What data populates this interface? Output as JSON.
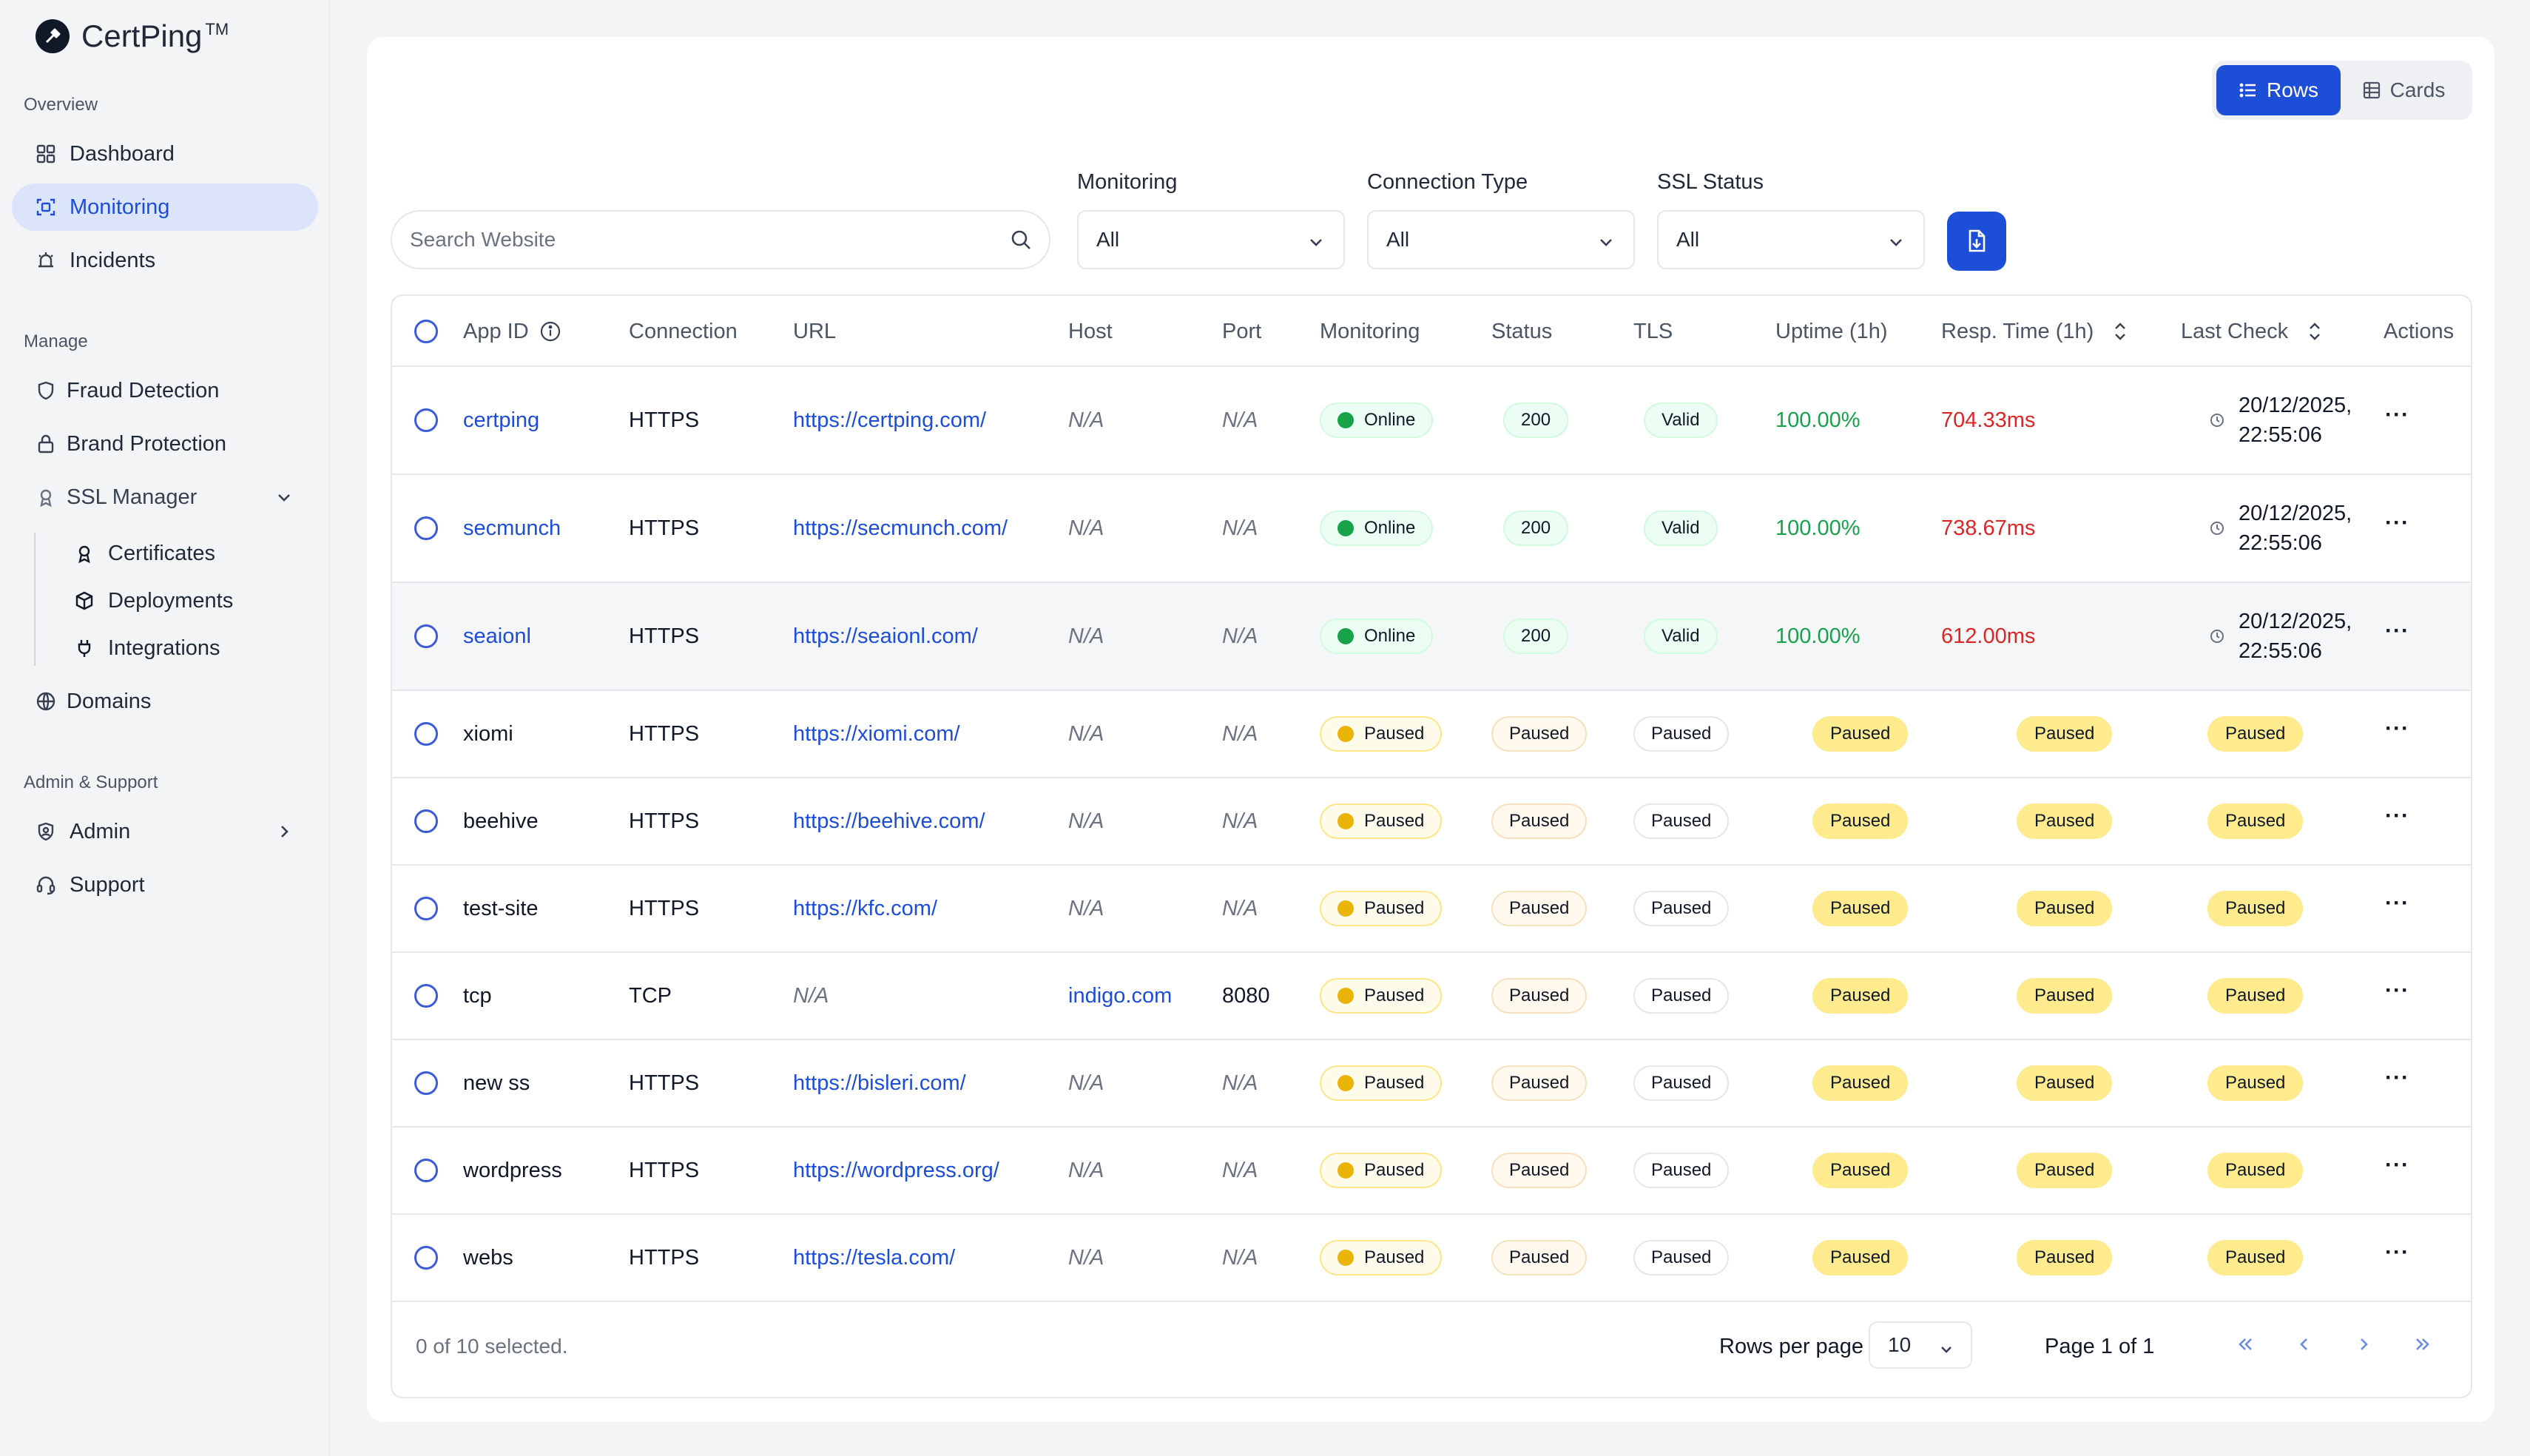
{
  "app": {
    "name": "CertPing",
    "tm": "TM"
  },
  "sidebar": {
    "sections": [
      {
        "label": "Overview"
      },
      {
        "label": "Manage"
      },
      {
        "label": "Admin & Support"
      }
    ],
    "items": {
      "dashboard": "Dashboard",
      "monitoring": "Monitoring",
      "incidents": "Incidents",
      "fraud": "Fraud Detection",
      "brand": "Brand Protection",
      "ssl": "SSL Manager",
      "certificates": "Certificates",
      "deployments": "Deployments",
      "integrations": "Integrations",
      "domains": "Domains",
      "admin": "Admin",
      "support": "Support"
    }
  },
  "toolbar": {
    "view_rows": "Rows",
    "view_cards": "Cards",
    "search_placeholder": "Search Website",
    "filters": [
      {
        "label": "Monitoring",
        "value": "All"
      },
      {
        "label": "Connection Type",
        "value": "All"
      },
      {
        "label": "SSL Status",
        "value": "All"
      }
    ]
  },
  "table": {
    "headers": {
      "app_id": "App ID",
      "connection": "Connection",
      "url": "URL",
      "host": "Host",
      "port": "Port",
      "monitoring": "Monitoring",
      "status": "Status",
      "tls": "TLS",
      "uptime": "Uptime (1h)",
      "resp": "Resp. Time (1h)",
      "last_check": "Last Check",
      "actions": "Actions"
    },
    "rows": [
      {
        "app_id": "certping",
        "connection": "HTTPS",
        "url": "https://certping.com/",
        "host": "N/A",
        "port": "N/A",
        "monitoring": "Online",
        "status": "200",
        "tls": "Valid",
        "uptime": "100.00%",
        "resp": "704.33ms",
        "last_check_date": "20/12/2025,",
        "last_check_time": "22:55:06"
      },
      {
        "app_id": "secmunch",
        "connection": "HTTPS",
        "url": "https://secmunch.com/",
        "host": "N/A",
        "port": "N/A",
        "monitoring": "Online",
        "status": "200",
        "tls": "Valid",
        "uptime": "100.00%",
        "resp": "738.67ms",
        "last_check_date": "20/12/2025,",
        "last_check_time": "22:55:06"
      },
      {
        "app_id": "seaionl",
        "connection": "HTTPS",
        "url": "https://seaionl.com/",
        "host": "N/A",
        "port": "N/A",
        "monitoring": "Online",
        "status": "200",
        "tls": "Valid",
        "uptime": "100.00%",
        "resp": "612.00ms",
        "last_check_date": "20/12/2025,",
        "last_check_time": "22:55:06"
      },
      {
        "app_id": "xiomi",
        "connection": "HTTPS",
        "url": "https://xiomi.com/",
        "host": "N/A",
        "port": "N/A",
        "monitoring": "Paused",
        "status": "Paused",
        "tls": "Paused",
        "uptime": "Paused",
        "resp": "Paused",
        "last_check": "Paused"
      },
      {
        "app_id": "beehive",
        "connection": "HTTPS",
        "url": "https://beehive.com/",
        "host": "N/A",
        "port": "N/A",
        "monitoring": "Paused",
        "status": "Paused",
        "tls": "Paused",
        "uptime": "Paused",
        "resp": "Paused",
        "last_check": "Paused"
      },
      {
        "app_id": "test-site",
        "connection": "HTTPS",
        "url": "https://kfc.com/",
        "host": "N/A",
        "port": "N/A",
        "monitoring": "Paused",
        "status": "Paused",
        "tls": "Paused",
        "uptime": "Paused",
        "resp": "Paused",
        "last_check": "Paused"
      },
      {
        "app_id": "tcp",
        "connection": "TCP",
        "url": "N/A",
        "host": "indigo.com",
        "port": "8080",
        "monitoring": "Paused",
        "status": "Paused",
        "tls": "Paused",
        "uptime": "Paused",
        "resp": "Paused",
        "last_check": "Paused"
      },
      {
        "app_id": "new ss",
        "connection": "HTTPS",
        "url": "https://bisleri.com/",
        "host": "N/A",
        "port": "N/A",
        "monitoring": "Paused",
        "status": "Paused",
        "tls": "Paused",
        "uptime": "Paused",
        "resp": "Paused",
        "last_check": "Paused"
      },
      {
        "app_id": "wordpress",
        "connection": "HTTPS",
        "url": "https://wordpress.org/",
        "host": "N/A",
        "port": "N/A",
        "monitoring": "Paused",
        "status": "Paused",
        "tls": "Paused",
        "uptime": "Paused",
        "resp": "Paused",
        "last_check": "Paused"
      },
      {
        "app_id": "webs",
        "connection": "HTTPS",
        "url": "https://tesla.com/",
        "host": "N/A",
        "port": "N/A",
        "monitoring": "Paused",
        "status": "Paused",
        "tls": "Paused",
        "uptime": "Paused",
        "resp": "Paused",
        "last_check": "Paused"
      }
    ]
  },
  "footer": {
    "selected": "0 of 10 selected.",
    "rows_per_page_label": "Rows per page",
    "rows_per_page": "10",
    "page_info": "Page 1 of 1"
  },
  "colors": {
    "accent": "#1d4ed8",
    "online": "#16a34a",
    "paused": "#eab308",
    "error": "#dc2626"
  },
  "icons": [
    "logo-icon",
    "dashboard-icon",
    "monitoring-icon",
    "incidents-icon",
    "shield-icon",
    "lock-icon",
    "ssl-icon",
    "certificate-icon",
    "box-icon",
    "plug-icon",
    "globe-icon",
    "admin-icon",
    "headset-icon",
    "list-icon",
    "grid-icon",
    "search-icon",
    "export-icon",
    "info-icon",
    "sort-icon",
    "clock-icon",
    "more-icon"
  ]
}
